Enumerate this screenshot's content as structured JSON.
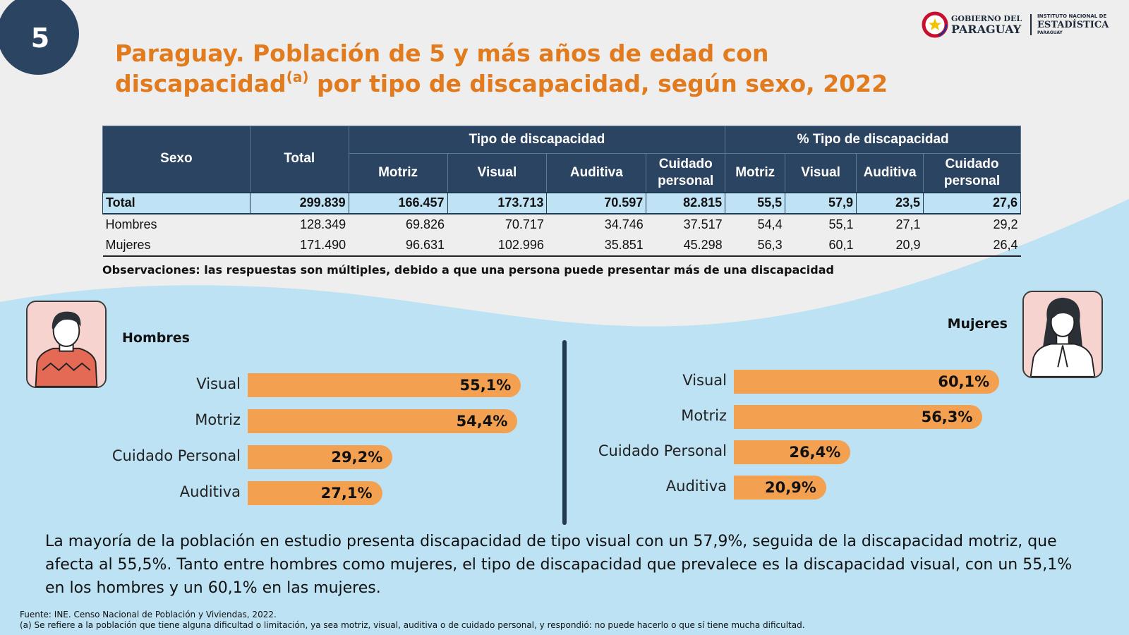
{
  "page_number": "5",
  "title": {
    "line1": "Paraguay. Población de 5 y más años de edad con",
    "line2_pre": "discapacidad",
    "line2_sup": "(a)",
    "line2_post": " por tipo de discapacidad, según sexo, 2022"
  },
  "logo": {
    "gob_line1": "GOBIERNO DEL",
    "gob_line2": "PARAGUAY",
    "ine_line1": "INSTITUTO NACIONAL DE",
    "ine_line2": "ESTADÍSTICA",
    "ine_line3": "PARAGUAY"
  },
  "colors": {
    "navy": "#2b4461",
    "orange_title": "#e17b1d",
    "bar": "#f3a151",
    "light_blue": "#bfe3f4"
  },
  "table": {
    "header": {
      "sexo": "Sexo",
      "total": "Total",
      "tipo": "Tipo de discapacidad",
      "pct_tipo": "% Tipo de discapacidad",
      "motriz": "Motriz",
      "visual": "Visual",
      "auditiva": "Auditiva",
      "cuidado_l1": "Cuidado",
      "cuidado_l2": "personal"
    },
    "rows": [
      {
        "sexo": "Total",
        "total": "299.839",
        "motriz": "166.457",
        "visual": "173.713",
        "auditiva": "70.597",
        "cuidado": "82.815",
        "p_motriz": "55,5",
        "p_visual": "57,9",
        "p_auditiva": "23,5",
        "p_cuidado": "27,6"
      },
      {
        "sexo": "Hombres",
        "total": "128.349",
        "motriz": "69.826",
        "visual": "70.717",
        "auditiva": "34.746",
        "cuidado": "37.517",
        "p_motriz": "54,4",
        "p_visual": "55,1",
        "p_auditiva": "27,1",
        "p_cuidado": "29,2"
      },
      {
        "sexo": "Mujeres",
        "total": "171.490",
        "motriz": "96.631",
        "visual": "102.996",
        "auditiva": "35.851",
        "cuidado": "45.298",
        "p_motriz": "56,3",
        "p_visual": "60,1",
        "p_auditiva": "20,9",
        "p_cuidado": "26,4"
      }
    ]
  },
  "note": "Observaciones: las respuestas son múltiples, debido a que una persona puede presentar más de una discapacidad",
  "chart_data": [
    {
      "type": "bar",
      "orientation": "horizontal",
      "title": "Hombres",
      "categories": [
        "Visual",
        "Motriz",
        "Cuidado Personal",
        "Auditiva"
      ],
      "values": [
        55.1,
        54.4,
        29.2,
        27.1
      ],
      "value_labels": [
        "55,1%",
        "54,4%",
        "29,2%",
        "27,1%"
      ],
      "grid": false
    },
    {
      "type": "bar",
      "orientation": "horizontal",
      "title": "Mujeres",
      "categories": [
        "Visual",
        "Motriz",
        "Cuidado Personal",
        "Auditiva"
      ],
      "values": [
        60.1,
        56.3,
        26.4,
        20.9
      ],
      "value_labels": [
        "60,1%",
        "56,3%",
        "26,4%",
        "20,9%"
      ],
      "grid": false
    }
  ],
  "summary": "La mayoría de la población en estudio presenta discapacidad de tipo visual con un 57,9%, seguida de la discapacidad motriz, que afecta al 55,5%. Tanto entre hombres como mujeres, el tipo de discapacidad que prevalece es la discapacidad visual, con un 55,1%  en los hombres y un 60,1% en las mujeres.",
  "fuente": {
    "line1": "Fuente: INE. Censo Nacional de Población y Viviendas, 2022.",
    "line2": "(a) Se refiere a la población que tiene alguna dificultad o limitación, ya sea motriz, visual, auditiva o de cuidado personal, y respondió: no puede hacerlo o que sí tiene mucha dificultad."
  }
}
